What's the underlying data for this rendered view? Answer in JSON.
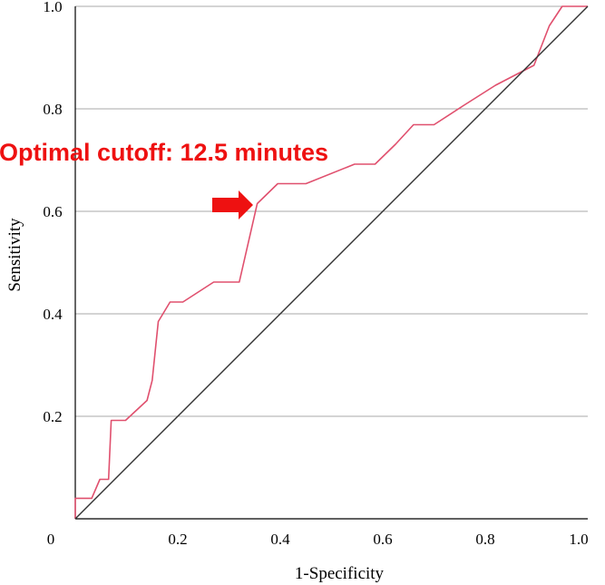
{
  "chart_data": {
    "type": "line",
    "title": "",
    "xlabel": "1-Specificity",
    "ylabel": "Sensitivity",
    "xlim": [
      0,
      1
    ],
    "ylim": [
      0,
      1
    ],
    "grid": "horizontal",
    "x_ticks": [
      "0",
      "0.2",
      "0.4",
      "0.6",
      "0.8",
      "1.0"
    ],
    "y_ticks": [
      "0.2",
      "0.4",
      "0.6",
      "0.8",
      "1.0"
    ],
    "series": [
      {
        "color": "#e0506e",
        "points": [
          [
            0.0,
            0.0
          ],
          [
            0.0,
            0.04
          ],
          [
            0.032,
            0.04
          ],
          [
            0.048,
            0.077
          ],
          [
            0.065,
            0.077
          ],
          [
            0.07,
            0.192
          ],
          [
            0.098,
            0.192
          ],
          [
            0.14,
            0.231
          ],
          [
            0.15,
            0.27
          ],
          [
            0.162,
            0.385
          ],
          [
            0.185,
            0.423
          ],
          [
            0.21,
            0.423
          ],
          [
            0.27,
            0.462
          ],
          [
            0.32,
            0.462
          ],
          [
            0.355,
            0.615
          ],
          [
            0.395,
            0.654
          ],
          [
            0.45,
            0.654
          ],
          [
            0.545,
            0.692
          ],
          [
            0.585,
            0.692
          ],
          [
            0.625,
            0.731
          ],
          [
            0.66,
            0.769
          ],
          [
            0.7,
            0.769
          ],
          [
            0.76,
            0.808
          ],
          [
            0.82,
            0.846
          ],
          [
            0.895,
            0.885
          ],
          [
            0.925,
            0.962
          ],
          [
            0.95,
            1.0
          ],
          [
            1.0,
            1.0
          ]
        ]
      },
      {
        "color": "#333333",
        "points": [
          [
            0,
            0
          ],
          [
            1,
            1
          ]
        ]
      }
    ],
    "annotations": [
      {
        "text": "Optimal cutoff: 12.5 minutes",
        "color": "#ee1111",
        "arrow_to": [
          0.355,
          0.615
        ]
      }
    ]
  }
}
